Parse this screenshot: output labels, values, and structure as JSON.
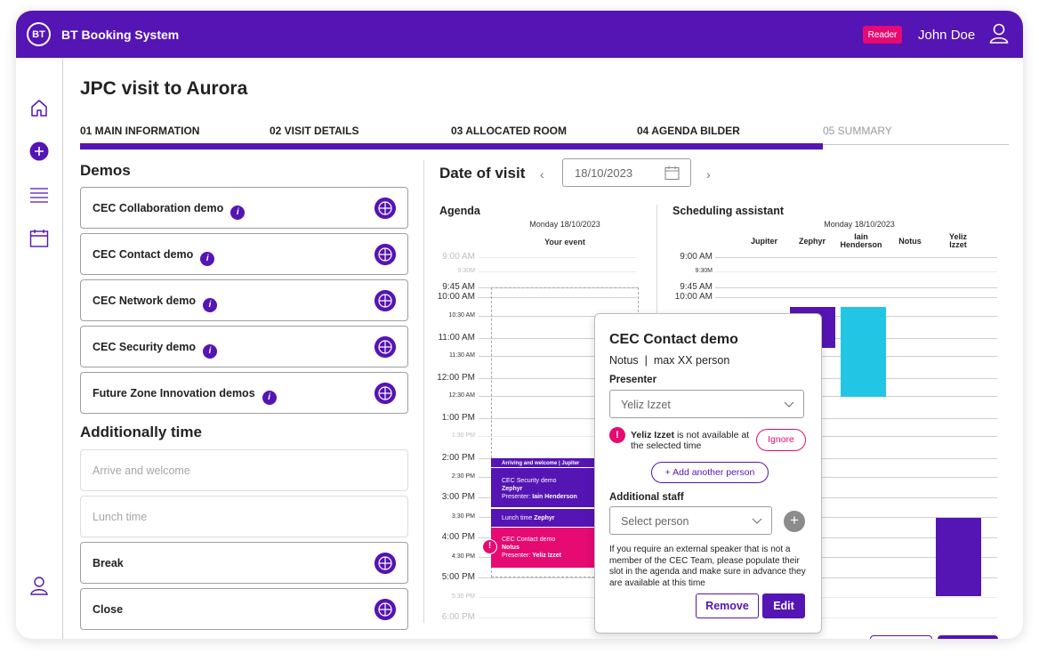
{
  "header": {
    "logo": "BT",
    "app_title": "BT Booking System",
    "role_badge": "Reader",
    "user_name": "John Doe",
    "user_icon": "user-icon"
  },
  "sidebar": {
    "icons": [
      "home-icon",
      "add-icon",
      "list-icon",
      "calendar-icon",
      "user-icon"
    ]
  },
  "page": {
    "title": "JPC visit to Aurora"
  },
  "steps": [
    {
      "label": "01 MAIN INFORMATION"
    },
    {
      "label": "02 VISIT DETAILS"
    },
    {
      "label": "03 ALLOCATED ROOM"
    },
    {
      "label": "04 AGENDA BILDER"
    },
    {
      "label": "05 SUMMARY"
    }
  ],
  "progress": {
    "completed_steps": 4,
    "total_steps": 5
  },
  "demos": {
    "title": "Demos",
    "items": [
      {
        "label": "CEC Collaboration demo",
        "info": "i"
      },
      {
        "label": "CEC Contact demo",
        "info": "i"
      },
      {
        "label": "CEC Network demo",
        "info": "i"
      },
      {
        "label": "CEC Security demo",
        "info": "i"
      },
      {
        "label": "Future Zone Innovation demos",
        "info": "i"
      }
    ]
  },
  "additional": {
    "title": "Additionally time",
    "items": [
      {
        "label": "Arrive and welcome"
      },
      {
        "label": "Lunch time"
      },
      {
        "label": "Break"
      },
      {
        "label": "Close"
      }
    ]
  },
  "date_of_visit": {
    "label": "Date of visit",
    "value": "18/10/2023",
    "prev": "‹",
    "next": "›"
  },
  "agenda": {
    "title": "Agenda",
    "date": "Monday 18/10/2023",
    "column": "Your event",
    "times": [
      "9:00 AM",
      "9:30M",
      "9:45 AM",
      "10:00 AM",
      "10:30 AM",
      "11:00 AM",
      "11:30 AM",
      "12:00 PM",
      "12:30 AM",
      "1:00 PM",
      "1:30 PM",
      "2:00 PM",
      "2:30 PM",
      "3:00 PM",
      "3:30 PM",
      "4:00 PM",
      "4:30 PM",
      "5:00 PM",
      "5:30 PM",
      "6:00 PM"
    ],
    "events": [
      {
        "line1": "Arriving and welcome | Jupiter",
        "color": "#5514b4"
      },
      {
        "line1": "CEC Security demo",
        "line2": "Zephyr",
        "line3_prefix": "Presenter: ",
        "line3_name": "Iain Henderson",
        "color": "#5514b4"
      },
      {
        "line1_prefix": "Lunch time ",
        "line1_name": "Zephyr",
        "color": "#5514b4"
      },
      {
        "line1": "CEC Contact demo",
        "line2": "Notus",
        "line3_prefix": "Presenter: ",
        "line3_name": "Yeliz Izzet",
        "color": "#e60a73",
        "alert": "!"
      }
    ]
  },
  "scheduling": {
    "title": "Scheduling assistant",
    "date": "Monday 18/10/2023",
    "times": [
      "9:00 AM",
      "9:30M",
      "9:45 AM",
      "10:00 AM"
    ],
    "resources": [
      "Jupiter",
      "Zephyr",
      "Iain Henderson",
      "Notus",
      "Yeliz Izzet"
    ],
    "colors": {
      "zephyr": "#5514b4",
      "iain": "#22c5e3",
      "yeliz": "#5514b4"
    }
  },
  "popup": {
    "title": "CEC Contact demo",
    "room": "Notus",
    "separator": "|",
    "capacity": "max XX person",
    "presenter_label": "Presenter",
    "presenter_value": "Yeliz Izzet",
    "warning_icon": "!",
    "warning_name": "Yeliz Izzet",
    "warning_text": " is not available at the selected time",
    "ignore": "Ignore",
    "add_person": "+ Add another person",
    "staff_label": "Additional staff",
    "staff_placeholder": "Select person",
    "staff_add": "+",
    "note": "If you require an external speaker that is not a member of the CEC Team, please populate their slot in the agenda and make sure in advance they are available at this time",
    "remove": "Remove",
    "edit": "Edit"
  }
}
